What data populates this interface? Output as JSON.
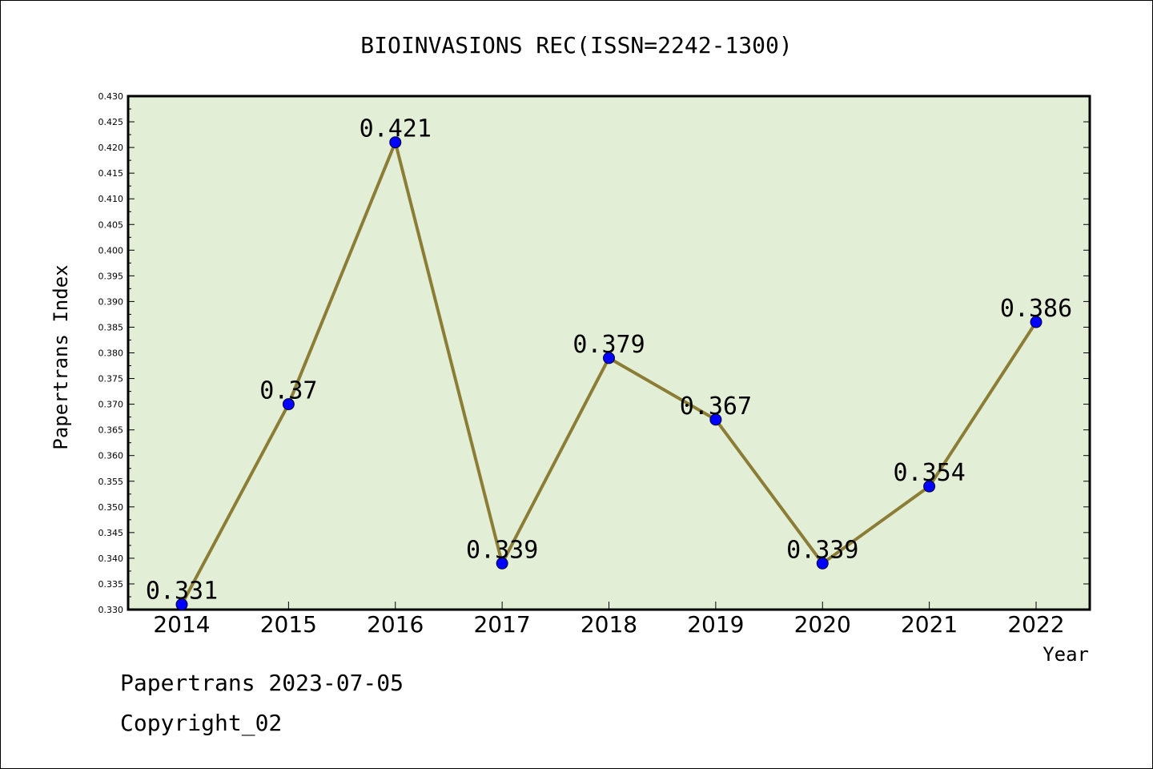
{
  "chart_data": {
    "type": "line",
    "title": "BIOINVASIONS REC(ISSN=2242-1300)",
    "xlabel": "Year",
    "ylabel": "Papertrans Index",
    "categories": [
      "2014",
      "2015",
      "2016",
      "2017",
      "2018",
      "2019",
      "2020",
      "2021",
      "2022"
    ],
    "values": [
      0.331,
      0.37,
      0.421,
      0.339,
      0.379,
      0.367,
      0.339,
      0.354,
      0.386
    ],
    "data_labels": [
      "0.331",
      "0.37",
      "0.421",
      "0.339",
      "0.379",
      "0.367",
      "0.339",
      "0.354",
      "0.386"
    ],
    "ylim": [
      0.33,
      0.43
    ],
    "y_ticks": [
      "0.330",
      "0.335",
      "0.340",
      "0.345",
      "0.350",
      "0.355",
      "0.360",
      "0.365",
      "0.370",
      "0.375",
      "0.380",
      "0.385",
      "0.390",
      "0.395",
      "0.400",
      "0.405",
      "0.410",
      "0.415",
      "0.420",
      "0.425",
      "0.430"
    ],
    "grid": false,
    "legend": "none",
    "colors": {
      "plot_background": "#e2efd6",
      "line": "#8b7d36",
      "marker": "#0000ff"
    }
  },
  "footer": {
    "line1": "Papertrans 2023-07-05",
    "line2": "Copyright_02"
  }
}
